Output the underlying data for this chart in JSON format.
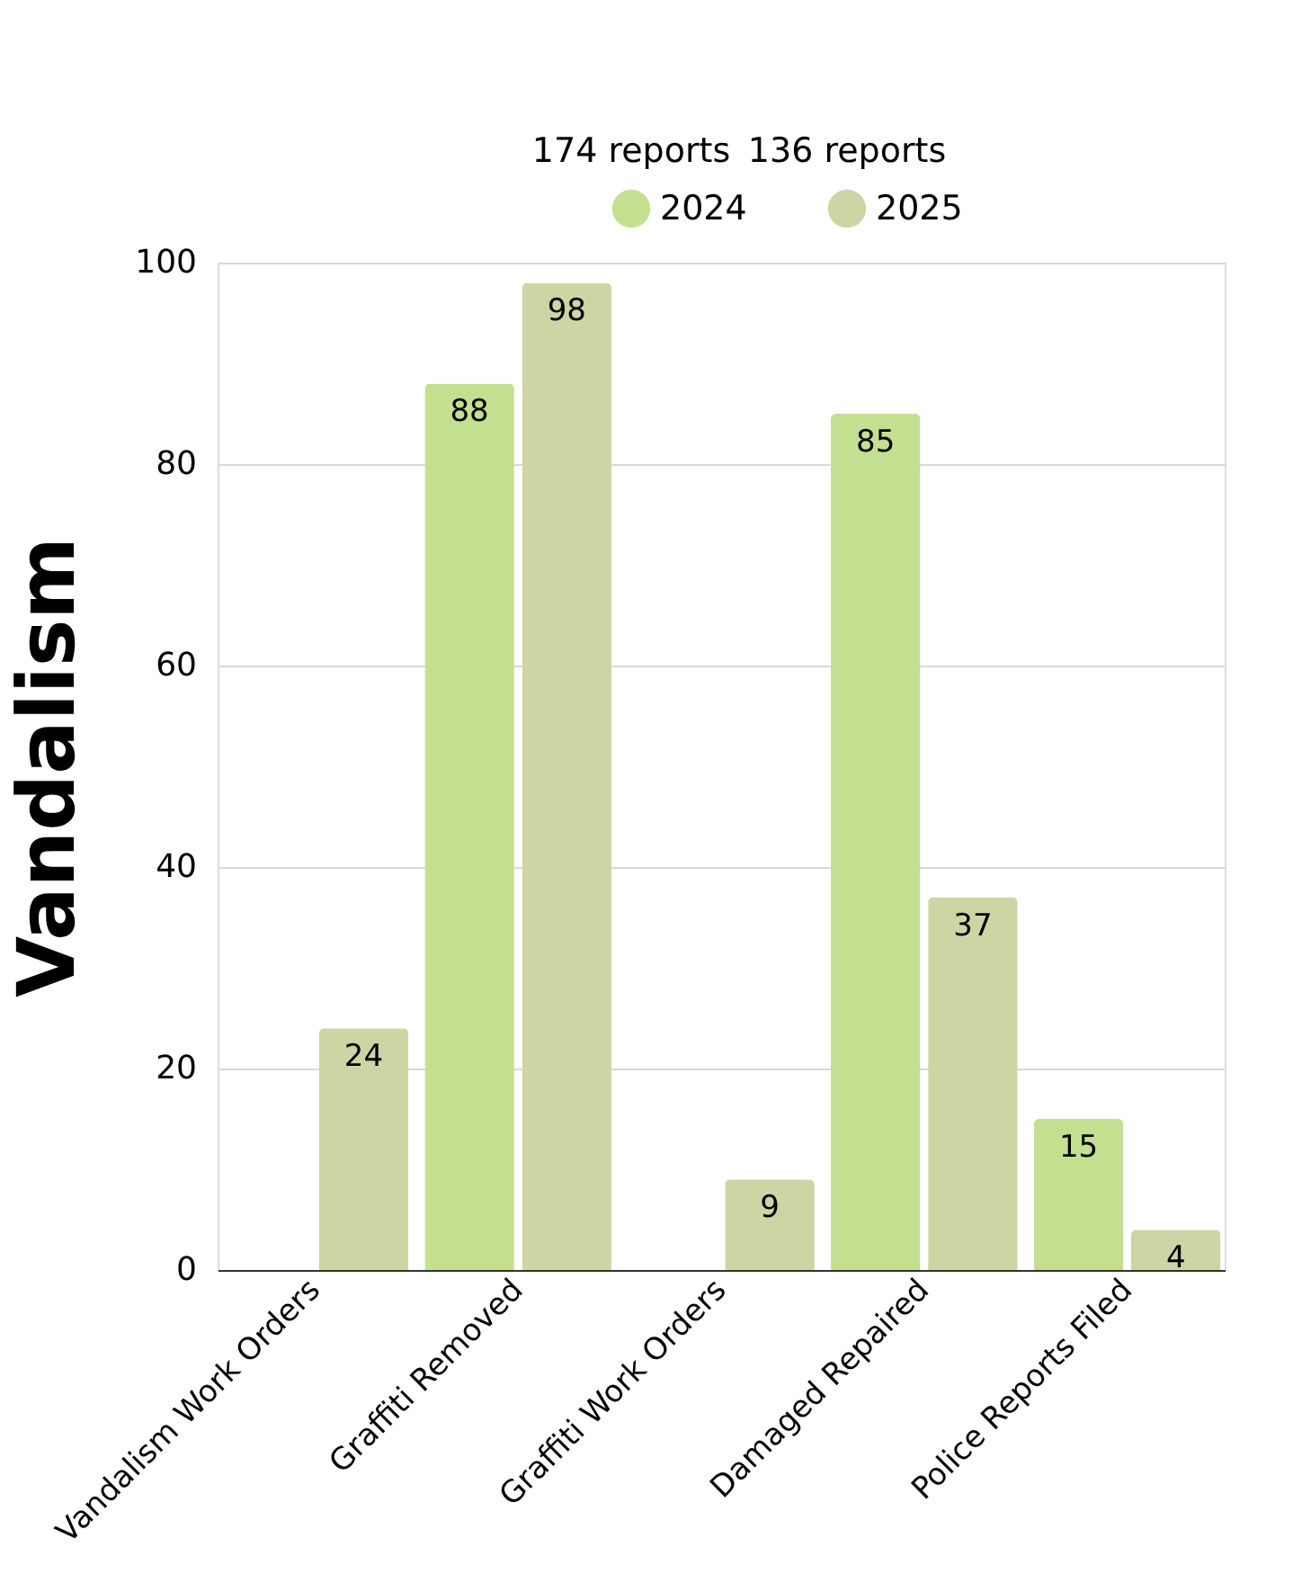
{
  "chart_data": {
    "type": "bar",
    "ylabel": "Vandalism",
    "categories": [
      "Vandalism Work Orders",
      "Graffiti Removed",
      "Graffiti Work Orders",
      "Damaged Repaired",
      "Police Reports Filed"
    ],
    "series": [
      {
        "name": "2024",
        "color": "#c5df91",
        "values": [
          null,
          88,
          null,
          85,
          15
        ]
      },
      {
        "name": "2025",
        "color": "#cdd5a5",
        "values": [
          24,
          98,
          9,
          37,
          4
        ]
      }
    ],
    "annotations": [
      "174 reports",
      "136 reports"
    ],
    "ylim": [
      0,
      100
    ],
    "yticks": [
      0,
      20,
      40,
      60,
      80,
      100
    ],
    "grid": "y",
    "legend": "top",
    "data_labels": true
  }
}
